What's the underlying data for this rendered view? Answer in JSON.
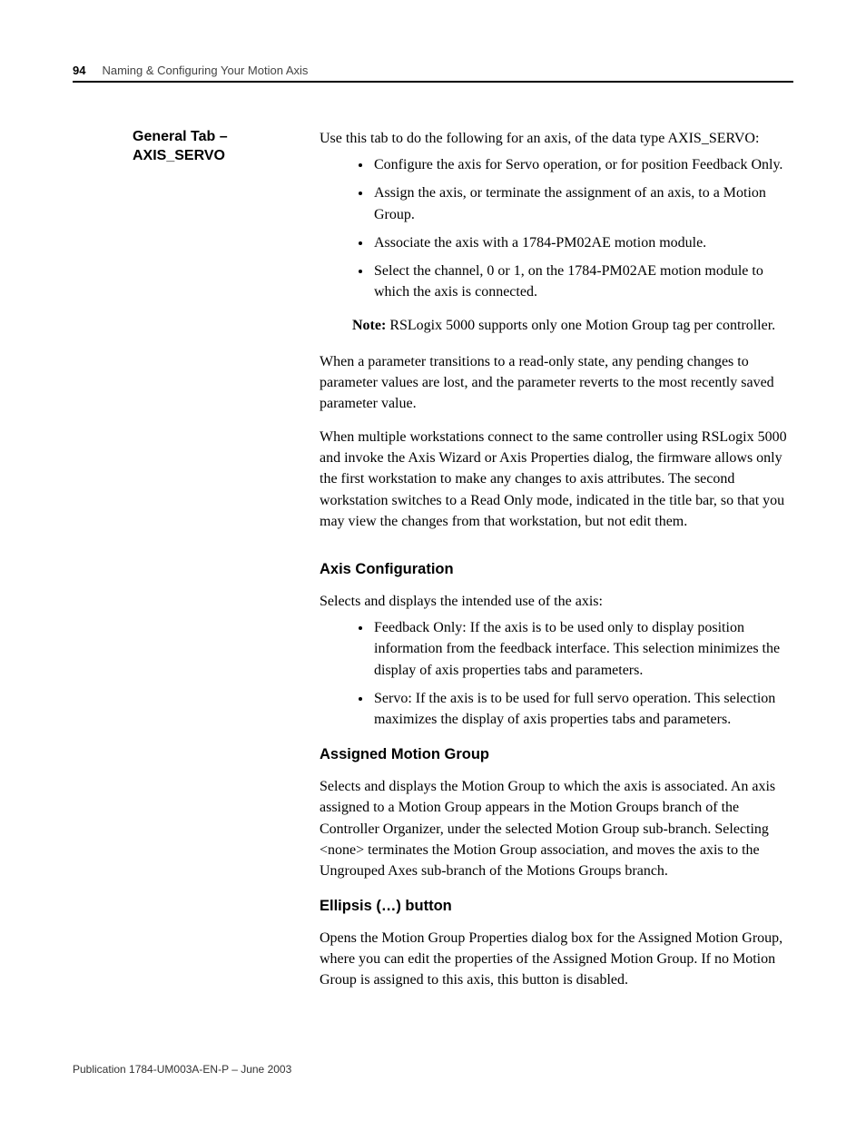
{
  "header": {
    "page_number": "94",
    "chapter_title": "Naming & Configuring Your Motion Axis"
  },
  "section": {
    "side_heading": "General Tab – AXIS_SERVO",
    "intro": "Use this tab to do the following for an axis, of the data type AXIS_SERVO:",
    "intro_bullets": [
      "Configure the axis for Servo operation, or for position Feedback Only.",
      "Assign the axis, or terminate the assignment of an axis, to a Motion Group.",
      "Associate the axis with a 1784-PM02AE motion module.",
      "Select the channel, 0 or 1, on the 1784-PM02AE motion module to which the axis is connected."
    ],
    "note_label": "Note:",
    "note_text": " RSLogix 5000 supports only one Motion Group tag per controller.",
    "para_readonly": "When a parameter transitions to a read-only state, any pending changes to parameter values are lost, and the parameter reverts to the most recently saved parameter value.",
    "para_multi": "When multiple workstations connect to the same controller using RSLogix 5000 and invoke the Axis Wizard or Axis Properties dialog, the firmware allows only the first workstation to make any changes to axis attributes. The second workstation switches to a Read Only mode, indicated in the title bar, so that you may view the changes from that workstation, but not edit them."
  },
  "axis_config": {
    "heading": "Axis Configuration",
    "intro": "Selects and displays the intended use of the axis:",
    "bullets": [
      "Feedback Only: If the axis is to be used only to display position information from the feedback interface. This selection minimizes the display of axis properties tabs and parameters.",
      "Servo: If the axis is to be used for full servo operation. This selection maximizes the display of axis properties tabs and parameters."
    ]
  },
  "motion_group": {
    "heading": "Assigned Motion Group",
    "body": "Selects and displays the Motion Group to which the axis is associated. An axis assigned to a Motion Group appears in the Motion Groups branch of the Controller Organizer, under the selected Motion Group sub-branch. Selecting <none> terminates the Motion Group association, and moves the axis to the Ungrouped Axes sub-branch of the Motions Groups branch."
  },
  "ellipsis": {
    "heading": "Ellipsis (…) button",
    "body": "Opens the Motion Group Properties dialog box for the Assigned Motion Group, where you can edit the properties of the Assigned Motion Group. If no Motion Group is assigned to this axis, this button is disabled."
  },
  "footer": {
    "publication": "Publication 1784-UM003A-EN-P – June 2003"
  }
}
